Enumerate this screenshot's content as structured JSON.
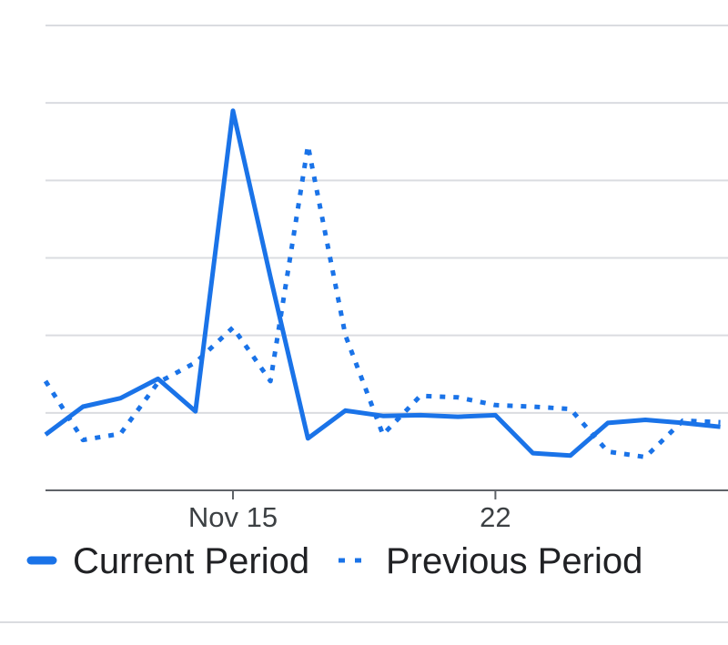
{
  "chart_data": {
    "type": "line",
    "title": "",
    "xlabel": "",
    "ylabel": "",
    "x_tick_labels": [
      {
        "label": "Nov 15",
        "index": 5
      },
      {
        "label": "22",
        "index": 12
      }
    ],
    "ylim": [
      0,
      6
    ],
    "y_gridlines": [
      1,
      2,
      3,
      4,
      5,
      6
    ],
    "x": [
      "Nov 10",
      "Nov 11",
      "Nov 12",
      "Nov 13",
      "Nov 14",
      "Nov 15",
      "Nov 16",
      "Nov 17",
      "Nov 18",
      "Nov 19",
      "Nov 20",
      "Nov 21",
      "Nov 22",
      "Nov 23",
      "Nov 24",
      "Nov 25",
      "Nov 26",
      "Nov 27",
      "Nov 28"
    ],
    "series": [
      {
        "name": "Current Period",
        "style": "solid",
        "color": "#1a73e8",
        "values": [
          0.72,
          1.08,
          1.19,
          1.44,
          1.02,
          4.9,
          2.75,
          0.67,
          1.03,
          0.96,
          0.97,
          0.95,
          0.97,
          0.48,
          0.45,
          0.87,
          0.91,
          0.87,
          0.82
        ]
      },
      {
        "name": "Previous Period",
        "style": "dotted",
        "color": "#1a73e8",
        "values": [
          1.41,
          0.65,
          0.73,
          1.39,
          1.65,
          2.1,
          1.41,
          4.45,
          2.0,
          0.72,
          1.22,
          1.2,
          1.1,
          1.08,
          1.05,
          0.5,
          0.43,
          0.9,
          0.88
        ]
      }
    ],
    "grid": true,
    "legend": "bottom-left"
  }
}
